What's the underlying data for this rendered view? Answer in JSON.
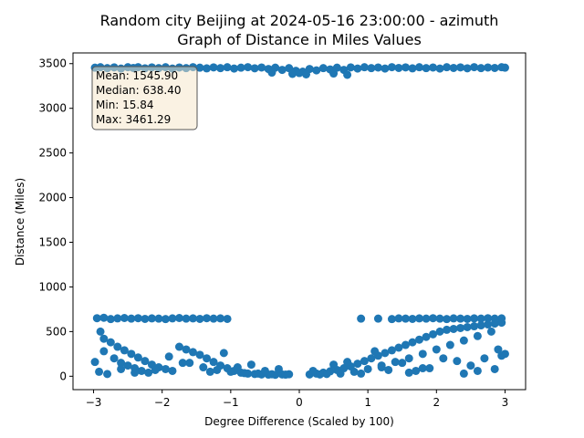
{
  "chart_data": {
    "type": "scatter",
    "title_line1": "Random city Beijing at 2024-05-16 23:00:00  - azimuth",
    "title_line2": "Graph of Distance in Miles Values",
    "xlabel": "Degree Difference (Scaled by 100)",
    "ylabel": "Distance (Miles)",
    "xlim": [
      -3.3,
      3.3
    ],
    "ylim": [
      -150,
      3620
    ],
    "xticks": [
      -3,
      -2,
      -1,
      0,
      1,
      2,
      3
    ],
    "yticks": [
      0,
      500,
      1000,
      1500,
      2000,
      2500,
      3000,
      3500
    ],
    "point_color": "#1f77b4",
    "stats_box_color": "#f5e6c8",
    "stats": [
      "Mean: 1545.90",
      "Median: 638.40",
      "Min: 15.84",
      "Max: 3461.29"
    ],
    "series": [
      {
        "points": [
          [
            -2.98,
            3455
          ],
          [
            -2.9,
            3460
          ],
          [
            -2.8,
            3450
          ],
          [
            -2.7,
            3458
          ],
          [
            -2.6,
            3445
          ],
          [
            -2.5,
            3460
          ],
          [
            -2.42,
            3452
          ],
          [
            -2.35,
            3461
          ],
          [
            -2.25,
            3448
          ],
          [
            -2.15,
            3458
          ],
          [
            -2.05,
            3450
          ],
          [
            -1.95,
            3460
          ],
          [
            -1.85,
            3445
          ],
          [
            -1.75,
            3457
          ],
          [
            -1.65,
            3450
          ],
          [
            -1.55,
            3461
          ],
          [
            -1.45,
            3455
          ],
          [
            -1.35,
            3447
          ],
          [
            -1.25,
            3458
          ],
          [
            -1.15,
            3450
          ],
          [
            -1.05,
            3460
          ],
          [
            -0.95,
            3445
          ],
          [
            -0.85,
            3455
          ],
          [
            -0.75,
            3461
          ],
          [
            -0.65,
            3448
          ],
          [
            -0.55,
            3457
          ],
          [
            -0.45,
            3440
          ],
          [
            -0.35,
            3455
          ],
          [
            -0.25,
            3430
          ],
          [
            -0.15,
            3450
          ],
          [
            -0.05,
            3420
          ],
          [
            0.05,
            3410
          ],
          [
            0.15,
            3440
          ],
          [
            0.25,
            3425
          ],
          [
            0.35,
            3450
          ],
          [
            0.45,
            3435
          ],
          [
            0.55,
            3455
          ],
          [
            0.65,
            3430
          ],
          [
            0.75,
            3458
          ],
          [
            0.85,
            3445
          ],
          [
            0.95,
            3460
          ],
          [
            1.05,
            3450
          ],
          [
            1.15,
            3457
          ],
          [
            1.25,
            3445
          ],
          [
            1.35,
            3461
          ],
          [
            1.45,
            3452
          ],
          [
            1.55,
            3458
          ],
          [
            1.65,
            3447
          ],
          [
            1.75,
            3460
          ],
          [
            1.85,
            3450
          ],
          [
            1.95,
            3457
          ],
          [
            2.05,
            3445
          ],
          [
            2.15,
            3460
          ],
          [
            2.25,
            3452
          ],
          [
            2.35,
            3458
          ],
          [
            2.45,
            3448
          ],
          [
            2.55,
            3461
          ],
          [
            2.65,
            3450
          ],
          [
            2.75,
            3457
          ],
          [
            2.85,
            3452
          ],
          [
            2.95,
            3460
          ],
          [
            3.0,
            3455
          ],
          [
            -0.1,
            3385
          ],
          [
            0.0,
            3395
          ],
          [
            0.1,
            3380
          ],
          [
            0.5,
            3390
          ],
          [
            0.7,
            3375
          ],
          [
            -0.4,
            3400
          ],
          [
            -2.95,
            650
          ],
          [
            -2.85,
            655
          ],
          [
            -2.75,
            640
          ],
          [
            -2.65,
            648
          ],
          [
            -2.55,
            652
          ],
          [
            -2.45,
            645
          ],
          [
            -2.35,
            650
          ],
          [
            -2.25,
            642
          ],
          [
            -2.15,
            648
          ],
          [
            -2.05,
            645
          ],
          [
            -1.95,
            640
          ],
          [
            -1.85,
            648
          ],
          [
            -1.75,
            652
          ],
          [
            -1.65,
            645
          ],
          [
            -1.55,
            648
          ],
          [
            -1.45,
            642
          ],
          [
            -1.35,
            650
          ],
          [
            -1.25,
            645
          ],
          [
            -1.15,
            648
          ],
          [
            -1.05,
            642
          ],
          [
            0.9,
            645
          ],
          [
            1.15,
            645
          ],
          [
            1.35,
            640
          ],
          [
            1.45,
            648
          ],
          [
            1.55,
            645
          ],
          [
            1.65,
            642
          ],
          [
            1.75,
            648
          ],
          [
            1.85,
            645
          ],
          [
            1.95,
            650
          ],
          [
            2.05,
            645
          ],
          [
            2.15,
            640
          ],
          [
            2.25,
            648
          ],
          [
            2.35,
            645
          ],
          [
            2.45,
            642
          ],
          [
            2.55,
            648
          ],
          [
            2.65,
            645
          ],
          [
            2.75,
            650
          ],
          [
            2.85,
            645
          ],
          [
            2.95,
            648
          ],
          [
            -2.9,
            500
          ],
          [
            -2.85,
            420
          ],
          [
            -2.75,
            380
          ],
          [
            -2.65,
            330
          ],
          [
            -2.55,
            290
          ],
          [
            -2.45,
            250
          ],
          [
            -2.35,
            210
          ],
          [
            -2.25,
            170
          ],
          [
            -2.15,
            130
          ],
          [
            -2.05,
            100
          ],
          [
            -1.95,
            80
          ],
          [
            -1.85,
            60
          ],
          [
            -2.85,
            280
          ],
          [
            -2.7,
            200
          ],
          [
            -2.6,
            150
          ],
          [
            -2.5,
            120
          ],
          [
            -2.4,
            90
          ],
          [
            -2.3,
            60
          ],
          [
            -2.2,
            40
          ],
          [
            -1.75,
            330
          ],
          [
            -1.65,
            300
          ],
          [
            -1.55,
            270
          ],
          [
            -1.45,
            240
          ],
          [
            -1.35,
            200
          ],
          [
            -1.25,
            160
          ],
          [
            -1.15,
            120
          ],
          [
            -1.05,
            90
          ],
          [
            -0.95,
            60
          ],
          [
            -0.85,
            40
          ],
          [
            -0.75,
            30
          ],
          [
            -0.65,
            25
          ],
          [
            -0.55,
            20
          ],
          [
            -0.45,
            18
          ],
          [
            -0.35,
            16
          ],
          [
            -0.25,
            20
          ],
          [
            -0.15,
            22
          ],
          [
            -1.6,
            150
          ],
          [
            -1.4,
            100
          ],
          [
            -1.2,
            70
          ],
          [
            -1.0,
            50
          ],
          [
            -0.8,
            35
          ],
          [
            -0.6,
            30
          ],
          [
            -0.4,
            22
          ],
          [
            -0.2,
            18
          ],
          [
            0.15,
            20
          ],
          [
            0.25,
            30
          ],
          [
            0.35,
            40
          ],
          [
            0.45,
            55
          ],
          [
            0.55,
            70
          ],
          [
            0.65,
            90
          ],
          [
            0.75,
            110
          ],
          [
            0.85,
            140
          ],
          [
            0.95,
            170
          ],
          [
            1.05,
            200
          ],
          [
            1.15,
            230
          ],
          [
            1.25,
            260
          ],
          [
            1.35,
            290
          ],
          [
            1.45,
            320
          ],
          [
            1.55,
            350
          ],
          [
            1.65,
            380
          ],
          [
            1.75,
            410
          ],
          [
            1.85,
            440
          ],
          [
            1.95,
            470
          ],
          [
            2.05,
            500
          ],
          [
            2.15,
            520
          ],
          [
            2.25,
            530
          ],
          [
            2.35,
            540
          ],
          [
            2.45,
            550
          ],
          [
            2.55,
            560
          ],
          [
            2.65,
            570
          ],
          [
            2.75,
            580
          ],
          [
            2.85,
            590
          ],
          [
            2.95,
            600
          ],
          [
            0.2,
            60
          ],
          [
            0.4,
            25
          ],
          [
            0.6,
            30
          ],
          [
            0.8,
            50
          ],
          [
            1.0,
            80
          ],
          [
            1.2,
            120
          ],
          [
            1.4,
            160
          ],
          [
            1.6,
            200
          ],
          [
            1.8,
            250
          ],
          [
            2.0,
            300
          ],
          [
            2.2,
            350
          ],
          [
            2.4,
            400
          ],
          [
            2.6,
            450
          ],
          [
            2.8,
            500
          ],
          [
            3.0,
            250
          ],
          [
            1.2,
            100
          ],
          [
            1.5,
            150
          ],
          [
            1.7,
            60
          ],
          [
            2.5,
            120
          ],
          [
            2.7,
            200
          ],
          [
            2.9,
            300
          ],
          [
            2.4,
            30
          ],
          [
            1.9,
            90
          ],
          [
            -2.98,
            160
          ],
          [
            -2.92,
            50
          ],
          [
            -2.8,
            25
          ],
          [
            -2.6,
            80
          ],
          [
            -2.4,
            40
          ],
          [
            -2.1,
            70
          ],
          [
            -1.9,
            220
          ],
          [
            -1.7,
            150
          ],
          [
            -1.3,
            50
          ],
          [
            -1.1,
            260
          ],
          [
            -0.9,
            100
          ],
          [
            -0.7,
            130
          ],
          [
            -0.5,
            60
          ],
          [
            -0.3,
            80
          ],
          [
            0.3,
            20
          ],
          [
            0.5,
            130
          ],
          [
            0.7,
            160
          ],
          [
            0.9,
            30
          ],
          [
            1.1,
            280
          ],
          [
            1.3,
            70
          ],
          [
            1.6,
            40
          ],
          [
            1.8,
            90
          ],
          [
            2.1,
            200
          ],
          [
            2.3,
            170
          ],
          [
            2.6,
            60
          ],
          [
            2.85,
            80
          ],
          [
            2.95,
            230
          ]
        ]
      }
    ]
  }
}
